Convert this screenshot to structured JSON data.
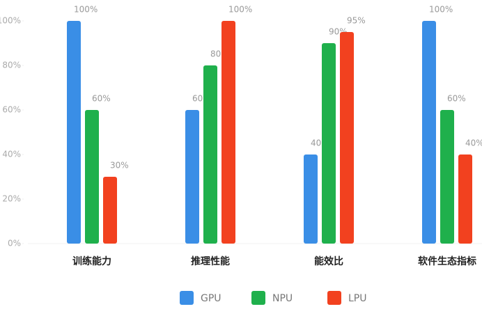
{
  "chart_data": {
    "type": "bar",
    "categories": [
      "训练能力",
      "推理性能",
      "能效比",
      "软件生态指标"
    ],
    "series": [
      {
        "name": "GPU",
        "color": "#3a8ee6",
        "values": [
          100,
          60,
          40,
          100
        ],
        "value_labels": [
          "100%",
          "60%",
          "40%",
          "100%"
        ]
      },
      {
        "name": "NPU",
        "color": "#1fb04c",
        "values": [
          60,
          80,
          90,
          60
        ],
        "value_labels": [
          "60%",
          "80%",
          "90%",
          "60%"
        ]
      },
      {
        "name": "LPU",
        "color": "#f2411f",
        "values": [
          30,
          100,
          95,
          40
        ],
        "value_labels": [
          "30%",
          "100%",
          "95%",
          "40%"
        ]
      }
    ],
    "ylim": [
      0,
      100
    ],
    "yticks": [
      {
        "value": 0,
        "label": "0%"
      },
      {
        "value": 20,
        "label": "20%"
      },
      {
        "value": 40,
        "label": "40%"
      },
      {
        "value": 60,
        "label": "60%"
      },
      {
        "value": 80,
        "label": "80%"
      },
      {
        "value": 100,
        "label": "100%"
      }
    ],
    "legend": "bottom"
  }
}
